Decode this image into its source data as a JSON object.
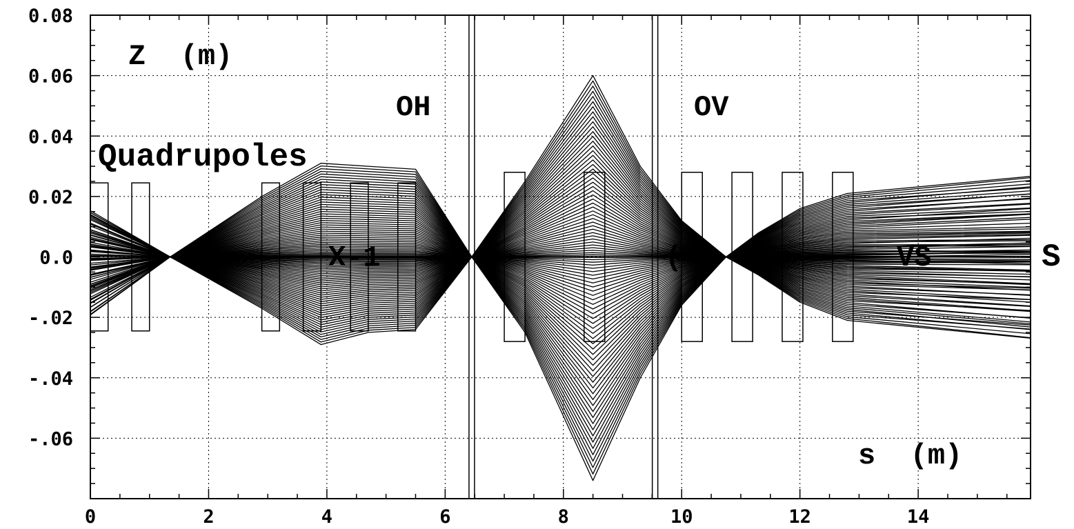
{
  "chart_data": {
    "type": "line",
    "xlim": [
      0,
      15.9
    ],
    "ylim": [
      -0.08,
      0.08
    ],
    "grid": true,
    "x_ticks": [
      {
        "value": 0,
        "label": "0"
      },
      {
        "value": 2,
        "label": "2"
      },
      {
        "value": 4,
        "label": "4"
      },
      {
        "value": 6,
        "label": "6"
      },
      {
        "value": 8,
        "label": "8"
      },
      {
        "value": 10,
        "label": "10"
      },
      {
        "value": 12,
        "label": "12"
      },
      {
        "value": 14,
        "label": "14"
      }
    ],
    "y_ticks": [
      {
        "value": 0.08,
        "label": "0.08"
      },
      {
        "value": 0.06,
        "label": "0.06"
      },
      {
        "value": 0.04,
        "label": "0.04"
      },
      {
        "value": 0.02,
        "label": "0.02"
      },
      {
        "value": 0.0,
        "label": "0.0"
      },
      {
        "value": -0.02,
        "label": "-.02"
      },
      {
        "value": -0.04,
        "label": "-.04"
      },
      {
        "value": -0.06,
        "label": "-.06"
      }
    ],
    "annotations": {
      "ylabel": "Z  (m)",
      "xlabel": "s  (m)",
      "oh_label": "OH",
      "ov_label": "OV",
      "quad_label": "Quadrupoles",
      "title_fragments": [
        "X-1",
        "( )",
        "VS",
        "S"
      ]
    },
    "quadrupoles": [
      {
        "s_start": 0.0,
        "s_end": 0.3,
        "half_aperture": 0.0245
      },
      {
        "s_start": 0.7,
        "s_end": 1.0,
        "half_aperture": 0.0245
      },
      {
        "s_start": 2.9,
        "s_end": 3.2,
        "half_aperture": 0.0245
      },
      {
        "s_start": 3.6,
        "s_end": 3.9,
        "half_aperture": 0.0245
      },
      {
        "s_start": 4.4,
        "s_end": 4.7,
        "half_aperture": 0.0245
      },
      {
        "s_start": 5.2,
        "s_end": 5.5,
        "half_aperture": 0.0245
      },
      {
        "s_start": 7.0,
        "s_end": 7.35,
        "half_aperture": 0.028
      },
      {
        "s_start": 8.35,
        "s_end": 8.7,
        "half_aperture": 0.028
      },
      {
        "s_start": 10.0,
        "s_end": 10.35,
        "half_aperture": 0.028
      },
      {
        "s_start": 10.85,
        "s_end": 11.2,
        "half_aperture": 0.028
      },
      {
        "s_start": 11.7,
        "s_end": 12.05,
        "half_aperture": 0.028
      },
      {
        "s_start": 12.55,
        "s_end": 12.9,
        "half_aperture": 0.028
      }
    ],
    "markers": [
      {
        "name": "OH",
        "s": 6.45
      },
      {
        "name": "OV",
        "s": 9.55
      }
    ],
    "trajectory_envelope": {
      "s": [
        0,
        1.35,
        2.9,
        3.9,
        4.7,
        5.5,
        6.45,
        7.35,
        8.5,
        9.3,
        10.0,
        10.75,
        11.3,
        12.0,
        12.8,
        15.9
      ],
      "z_max": [
        0.015,
        0.0,
        0.02,
        0.031,
        0.03,
        0.029,
        0.0,
        0.025,
        0.06,
        0.03,
        0.012,
        0.0,
        0.008,
        0.016,
        0.021,
        0.026
      ],
      "z_min": [
        -0.019,
        0.0,
        -0.017,
        -0.029,
        -0.025,
        -0.024,
        0.0,
        -0.025,
        -0.074,
        -0.04,
        -0.016,
        0.0,
        -0.006,
        -0.015,
        -0.021,
        -0.027
      ]
    },
    "ray_count": 90
  }
}
